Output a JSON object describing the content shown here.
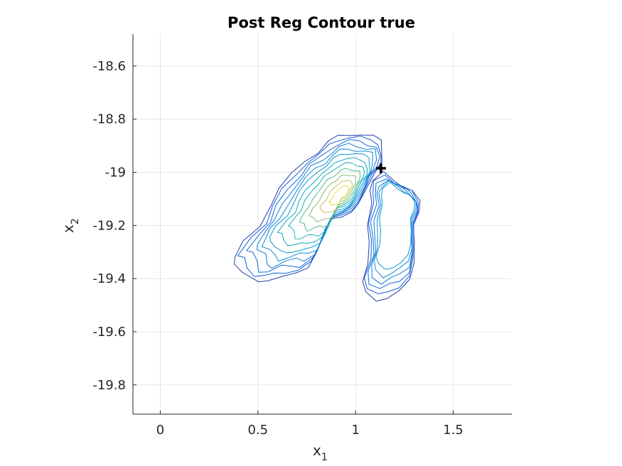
{
  "chart_data": {
    "type": "contour",
    "title": "Post Reg Contour true",
    "xlabel": "x",
    "xlabel_sub": "1",
    "ylabel": "x",
    "ylabel_sub": "2",
    "xlim": [
      -0.14,
      1.8
    ],
    "ylim": [
      -19.91,
      -18.48
    ],
    "xticks": [
      0,
      0.5,
      1,
      1.5
    ],
    "xtick_labels": [
      "0",
      "0.5",
      "1",
      "1.5"
    ],
    "yticks": [
      -18.6,
      -18.8,
      -19,
      -19.2,
      -19.4,
      -19.6,
      -19.8
    ],
    "ytick_labels": [
      "-18.6",
      "-18.8",
      "-19",
      "-19.2",
      "-19.4",
      "-19.6",
      "-19.8"
    ],
    "grid": true,
    "colormap": "parula",
    "marker": {
      "x": 1.13,
      "y": -18.985,
      "shape": "plus",
      "color": "#000000"
    },
    "regions": [
      {
        "name": "main",
        "center": [
          0.9,
          -19.1
        ],
        "peak_center": [
          0.94,
          -19.08
        ],
        "outline": [
          [
            0.36,
            -19.33
          ],
          [
            0.42,
            -19.26
          ],
          [
            0.49,
            -19.21
          ],
          [
            0.54,
            -19.13
          ],
          [
            0.6,
            -19.06
          ],
          [
            0.67,
            -19.0
          ],
          [
            0.73,
            -18.95
          ],
          [
            0.8,
            -18.92
          ],
          [
            0.86,
            -18.88
          ],
          [
            0.91,
            -18.855
          ],
          [
            0.97,
            -18.845
          ],
          [
            1.03,
            -18.85
          ],
          [
            1.09,
            -18.86
          ],
          [
            1.14,
            -18.87
          ],
          [
            1.15,
            -18.92
          ],
          [
            1.14,
            -18.96
          ],
          [
            1.1,
            -19.0
          ],
          [
            1.07,
            -19.05
          ],
          [
            1.02,
            -19.12
          ],
          [
            0.98,
            -19.15
          ],
          [
            0.93,
            -19.17
          ],
          [
            0.88,
            -19.18
          ],
          [
            0.84,
            -19.22
          ],
          [
            0.8,
            -19.3
          ],
          [
            0.75,
            -19.37
          ],
          [
            0.68,
            -19.4
          ],
          [
            0.62,
            -19.4
          ],
          [
            0.55,
            -19.41
          ],
          [
            0.48,
            -19.43
          ],
          [
            0.44,
            -19.42
          ],
          [
            0.41,
            -19.38
          ],
          [
            0.37,
            -19.35
          ]
        ],
        "levels": [
          0.04,
          0.1,
          0.17,
          0.24,
          0.31,
          0.38,
          0.47,
          0.56,
          0.66,
          0.76,
          0.86,
          0.95
        ]
      },
      {
        "name": "right-lobe",
        "center": [
          1.2,
          -19.25
        ],
        "peak_center": [
          1.25,
          -19.12
        ],
        "outline": [
          [
            1.08,
            -19.03
          ],
          [
            1.14,
            -19.0
          ],
          [
            1.2,
            -19.03
          ],
          [
            1.25,
            -19.05
          ],
          [
            1.29,
            -19.07
          ],
          [
            1.33,
            -19.11
          ],
          [
            1.33,
            -19.15
          ],
          [
            1.3,
            -19.2
          ],
          [
            1.3,
            -19.27
          ],
          [
            1.3,
            -19.35
          ],
          [
            1.28,
            -19.42
          ],
          [
            1.22,
            -19.46
          ],
          [
            1.16,
            -19.48
          ],
          [
            1.1,
            -19.5
          ],
          [
            1.04,
            -19.47
          ],
          [
            1.03,
            -19.42
          ],
          [
            1.06,
            -19.35
          ],
          [
            1.06,
            -19.27
          ],
          [
            1.05,
            -19.2
          ],
          [
            1.08,
            -19.12
          ],
          [
            1.07,
            -19.07
          ]
        ],
        "levels": [
          0.04,
          0.1,
          0.17,
          0.24,
          0.31,
          0.38
        ]
      }
    ]
  }
}
